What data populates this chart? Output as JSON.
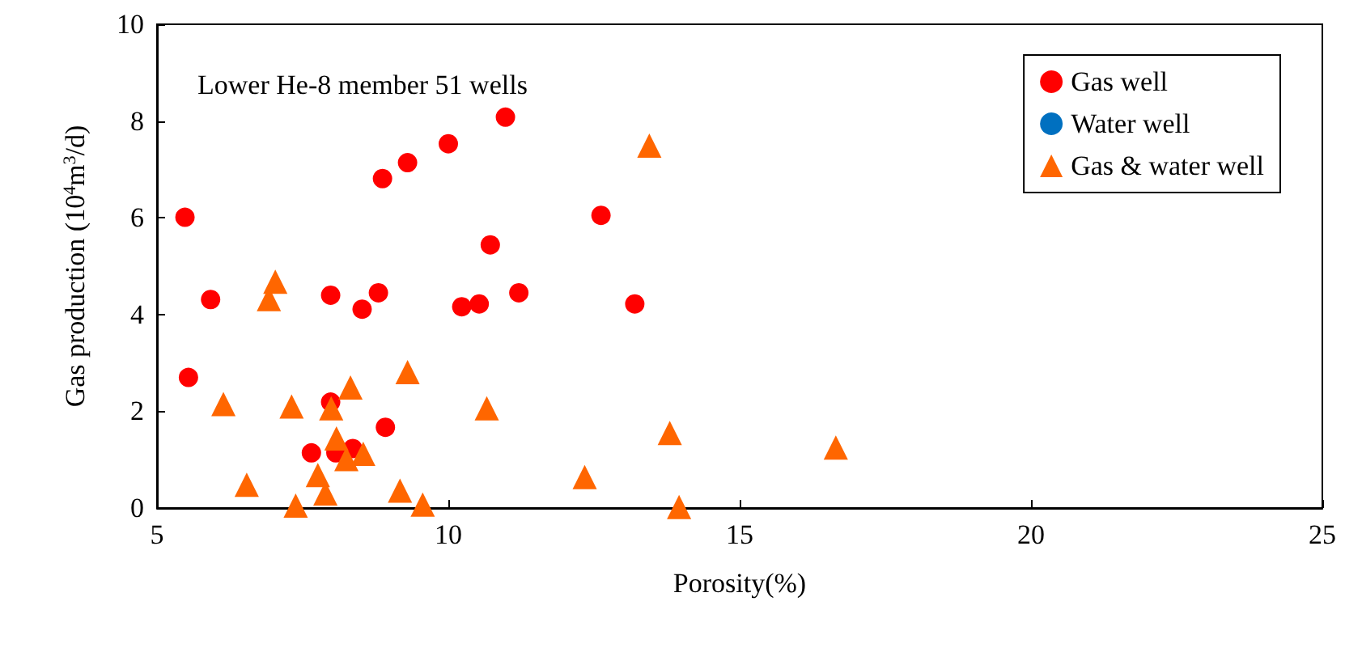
{
  "chart_data": {
    "type": "scatter",
    "xlabel": "Porosity(%)",
    "ylabel": "Gas production (10$^{4}$m$^{3}$/d)",
    "annotations": [
      "Lower He-8 member 51 wells"
    ],
    "xlim": [
      5,
      25
    ],
    "xticks": [
      5,
      10,
      15,
      20,
      25
    ],
    "ylim": [
      0,
      10
    ],
    "yticks": [
      0,
      2,
      4,
      6,
      8,
      10
    ],
    "grid": false,
    "legend": "top right",
    "series": [
      {
        "name": "Gas well",
        "color": "#ff0000",
        "marker": "circle",
        "x": [
          5.48,
          5.54,
          5.92,
          7.65,
          7.98,
          7.98,
          8.07,
          8.36,
          8.52,
          8.8,
          8.87,
          8.92,
          9.3,
          10.0,
          10.23,
          10.53,
          10.72,
          10.98,
          11.21,
          12.62,
          13.2
        ],
        "values": [
          6.01,
          2.7,
          4.31,
          1.14,
          4.4,
          2.19,
          1.14,
          1.23,
          4.11,
          4.45,
          6.81,
          1.67,
          7.14,
          7.53,
          4.16,
          4.22,
          5.44,
          8.08,
          4.45,
          6.05,
          4.22
        ]
      },
      {
        "name": "Water well",
        "color": "#0070c0",
        "marker": "circle"
      },
      {
        "name": "Gas & water well",
        "color": "#ff6600",
        "marker": "triangle",
        "x": [
          6.14,
          6.54,
          6.92,
          7.03,
          7.31,
          7.38,
          7.76,
          7.89,
          7.99,
          8.08,
          8.25,
          8.32,
          8.54,
          9.17,
          9.3,
          9.56,
          10.66,
          12.34,
          13.45,
          13.8,
          13.96,
          16.65
        ],
        "values": [
          2.15,
          0.48,
          4.32,
          4.68,
          2.1,
          0.05,
          0.68,
          0.3,
          2.06,
          1.44,
          1.01,
          2.49,
          1.12,
          0.36,
          2.81,
          0.07,
          2.06,
          0.64,
          7.49,
          1.55,
          0.02,
          1.25
        ]
      }
    ]
  }
}
